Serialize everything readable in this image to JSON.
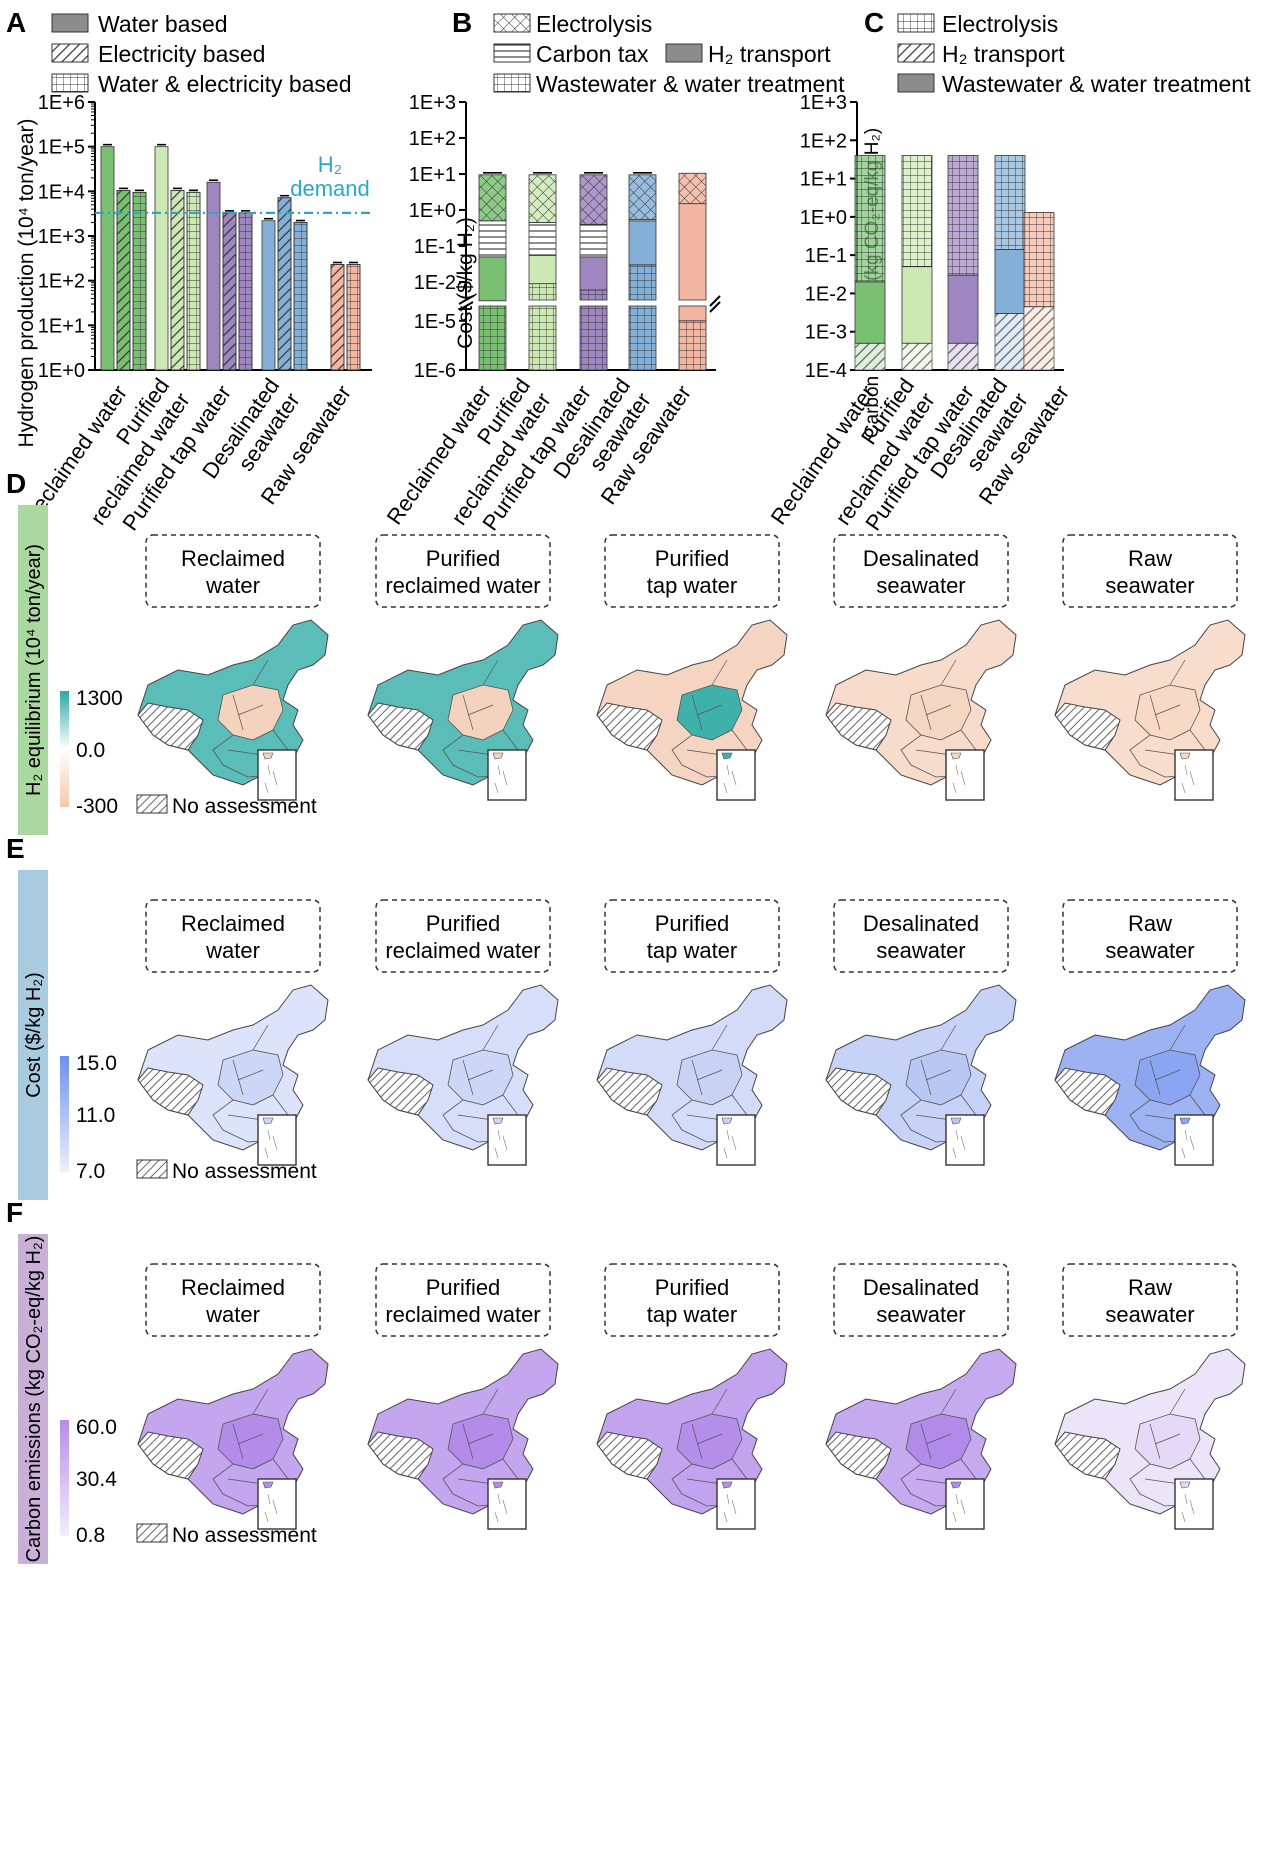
{
  "panels": {
    "A": {
      "letter": "A",
      "legend": [
        "Water based",
        "Electricity based",
        "Water & electricity based"
      ],
      "ylabel": "Hydrogen production (10⁴ ton/year)",
      "yticks": [
        "1E+0",
        "1E+1",
        "1E+2",
        "1E+3",
        "1E+4",
        "1E+5",
        "1E+6"
      ],
      "demand_label": [
        "H₂",
        "demand"
      ]
    },
    "B": {
      "letter": "B",
      "legend": [
        "Electrolysis",
        "Carbon tax",
        "H₂ transport",
        "Wastewater & water treatment"
      ],
      "ylabel": "Cost ($/kg H₂)",
      "yticks_upper": [
        "1E-2",
        "1E-1",
        "1E+0",
        "1E+1",
        "1E+2",
        "1E+3"
      ],
      "yticks_lower": [
        "1E-6",
        "1E-5"
      ]
    },
    "C": {
      "letter": "C",
      "legend": [
        "Electrolysis",
        "H₂ transport",
        "Wastewater & water treatment"
      ],
      "ylabel": "Carbon emissions (kg CO₂-eq/kg H₂)",
      "yticks": [
        "1E-4",
        "1E-3",
        "1E-2",
        "1E-1",
        "1E+0",
        "1E+1",
        "1E+2",
        "1E+3"
      ]
    },
    "category_labels": [
      "Reclaimed water",
      "Purified\nreclaimed water",
      "Purified tap water",
      "Desalinated\nseawater",
      "Raw seawater"
    ],
    "map_rows": [
      {
        "letter": "D",
        "side_label": "H₂ equilibrium (10⁴ ton/year)",
        "scale": [
          "1300",
          "0.0",
          "-300"
        ],
        "no_assessment": "No assessment",
        "band_color": "#a9d9a0"
      },
      {
        "letter": "E",
        "side_label": "Cost ($/kg H₂)",
        "scale": [
          "15.0",
          "11.0",
          "7.0"
        ],
        "no_assessment": "No assessment",
        "band_color": "#a9cbe0"
      },
      {
        "letter": "F",
        "side_label": "Carbon emissions (kg CO₂-eq/kg H₂)",
        "scale": [
          "60.0",
          "30.4",
          "0.8"
        ],
        "no_assessment": "No assessment",
        "band_color": "#c8b0d6"
      }
    ],
    "map_titles": [
      [
        "Reclaimed",
        "water"
      ],
      [
        "Purified",
        "reclaimed water"
      ],
      [
        "Purified",
        "tap water"
      ],
      [
        "Desalinated",
        "seawater"
      ],
      [
        "Raw",
        "seawater"
      ]
    ]
  },
  "colors": {
    "green": "#79c072",
    "lightgreen": "#cde9b3",
    "purple": "#9e86c0",
    "blue": "#84b0d8",
    "salmon": "#f3b6a0",
    "demand": "#29a8c8"
  },
  "chart_data": [
    {
      "type": "bar",
      "panel": "A",
      "log_scale": true,
      "ylim": [
        1,
        1000000
      ],
      "ylabel": "Hydrogen production (10⁴ ton/year)",
      "categories": [
        "Reclaimed water",
        "Purified reclaimed water",
        "Purified tap water",
        "Desalinated seawater",
        "Raw seawater"
      ],
      "series": [
        {
          "name": "Water based",
          "values": [
            100000,
            100000,
            16000,
            2200,
            null
          ]
        },
        {
          "name": "Electricity based",
          "values": [
            10500,
            10500,
            3300,
            7200,
            230
          ]
        },
        {
          "name": "Water & electricity based",
          "values": [
            9500,
            9500,
            3300,
            2000,
            230
          ]
        }
      ],
      "reference_line": {
        "label": "H₂ demand",
        "value": 3300
      }
    },
    {
      "type": "bar",
      "panel": "B",
      "stacked": true,
      "log_scale": true,
      "broken_axis": true,
      "ylabel": "Cost ($/kg H₂)",
      "categories": [
        "Reclaimed water",
        "Purified reclaimed water",
        "Purified tap water",
        "Desalinated seawater",
        "Raw seawater"
      ],
      "series": [
        {
          "name": "Wastewater & water treatment",
          "values": [
            0.003,
            0.009,
            0.006,
            0.03,
            1e-05
          ]
        },
        {
          "name": "H₂ transport",
          "values": [
            0.05,
            0.055,
            0.05,
            0.5,
            1.5
          ]
        },
        {
          "name": "Carbon tax",
          "values": [
            0.5,
            0.45,
            0.4,
            0.55,
            null
          ]
        },
        {
          "name": "Electrolysis",
          "values": [
            9.5,
            9.5,
            9.5,
            9.5,
            10.5
          ]
        }
      ]
    },
    {
      "type": "bar",
      "panel": "C",
      "stacked": true,
      "log_scale": true,
      "ylim": [
        0.0001,
        1000
      ],
      "ylabel": "Carbon emissions (kg CO₂-eq/kg H₂)",
      "categories": [
        "Reclaimed water",
        "Purified reclaimed water",
        "Purified tap water",
        "Desalinated seawater",
        "Raw seawater"
      ],
      "series": [
        {
          "name": "H₂ transport",
          "values": [
            0.0005,
            0.0005,
            0.0005,
            0.003,
            0.0045
          ]
        },
        {
          "name": "Wastewater & water treatment",
          "values": [
            0.02,
            0.05,
            0.03,
            0.14,
            null
          ]
        },
        {
          "name": "Electrolysis",
          "values": [
            40,
            40,
            40,
            40,
            1.3
          ]
        }
      ]
    }
  ]
}
